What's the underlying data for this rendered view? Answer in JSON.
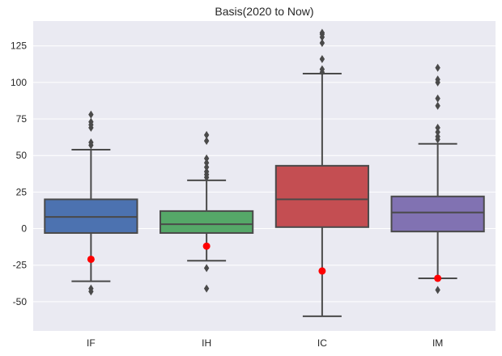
{
  "chart_data": {
    "type": "box",
    "title": "Basis(2020 to Now)",
    "xlabel": "",
    "ylabel": "",
    "ylim": [
      -70,
      142
    ],
    "yticks": [
      -50,
      -25,
      0,
      25,
      50,
      75,
      100,
      125
    ],
    "grid": true,
    "categories": [
      "IF",
      "IH",
      "IC",
      "IM"
    ],
    "boxes": [
      {
        "name": "IF",
        "color": "#4c72b0",
        "q1": -3,
        "median": 8,
        "q3": 20,
        "whisker_low": -36,
        "whisker_high": 54,
        "outliers": [
          -43,
          -41,
          57,
          59,
          69,
          71,
          73,
          78
        ],
        "current": -21
      },
      {
        "name": "IH",
        "color": "#55a868",
        "q1": -3,
        "median": 3,
        "q3": 12,
        "whisker_low": -22,
        "whisker_high": 33,
        "outliers": [
          -41,
          -27,
          35,
          37,
          39,
          42,
          45,
          48,
          60,
          64
        ],
        "current": -12
      },
      {
        "name": "IC",
        "color": "#c44e52",
        "q1": 1,
        "median": 20,
        "q3": 43,
        "whisker_low": -60,
        "whisker_high": 106,
        "outliers": [
          107,
          109,
          116,
          127,
          131,
          133,
          134
        ],
        "current": -29
      },
      {
        "name": "IM",
        "color": "#8172b2",
        "q1": -2,
        "median": 11,
        "q3": 22,
        "whisker_low": -34,
        "whisker_high": 58,
        "outliers": [
          -42,
          61,
          63,
          66,
          69,
          84,
          89,
          100,
          102,
          110
        ],
        "current": -34
      }
    ],
    "current_marker_color": "#ff0000"
  }
}
